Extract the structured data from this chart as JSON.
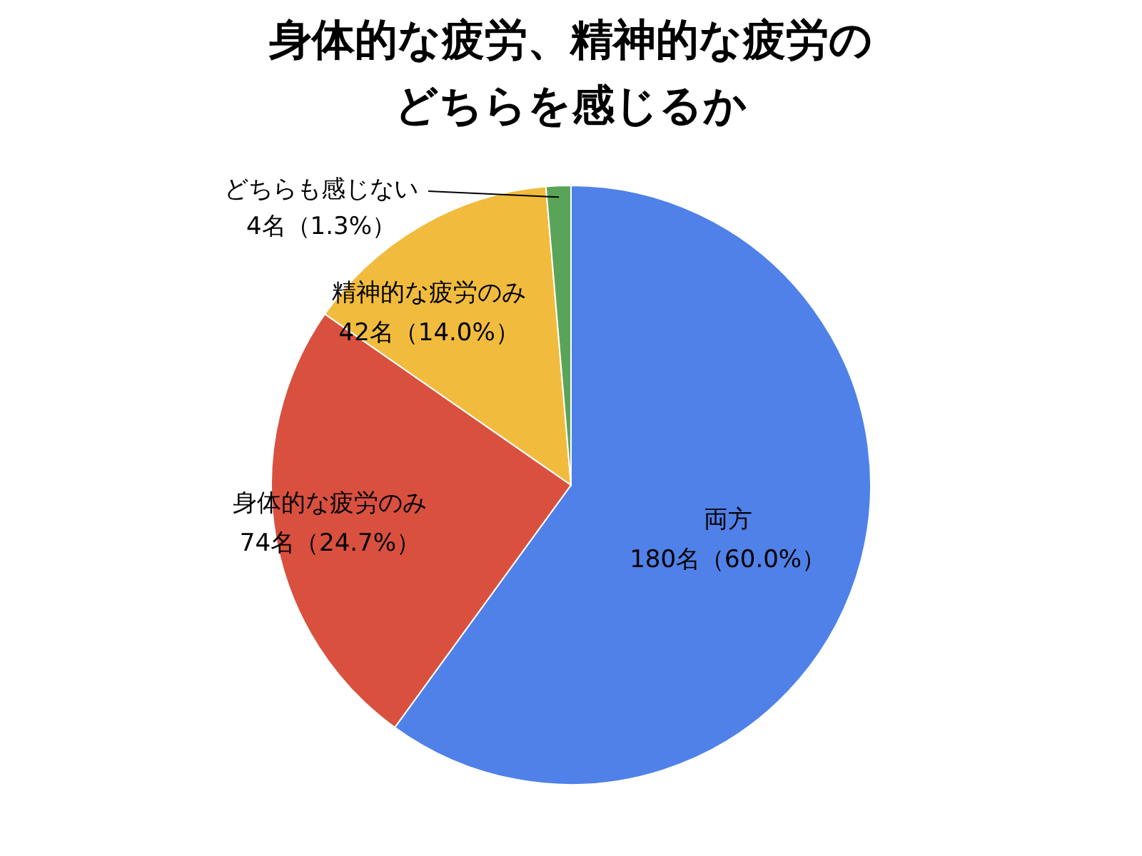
{
  "chart_data": {
    "type": "pie",
    "title": "身体的な疲労、精神的な疲労のどちらを感じるか",
    "categories": [
      "両方",
      "身体的な疲労のみ",
      "精神的な疲労のみ",
      "どちらも感じない"
    ],
    "values": [
      180,
      74,
      42,
      4
    ],
    "value_labels": [
      "180名（60.0%）",
      "74名（24.7%）",
      "42名（14.0%）",
      "4名（1.3%）"
    ],
    "colors": [
      "#4f81e8",
      "#d9503f",
      "#f1bc3d",
      "#5aa45a"
    ],
    "legend": false
  }
}
